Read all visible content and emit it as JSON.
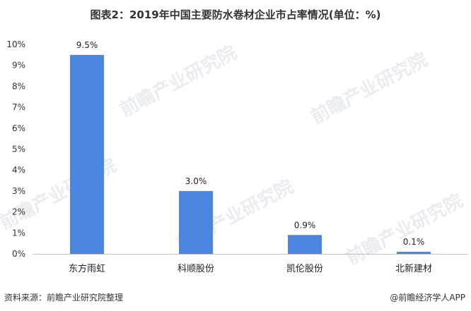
{
  "chart_data": {
    "type": "bar",
    "title": "图表2：2019年中国主要防水卷材企业市占率情况(单位：%)",
    "categories": [
      "东方雨虹",
      "科顺股份",
      "凯伦股份",
      "北新建材"
    ],
    "values": [
      9.5,
      3.0,
      0.9,
      0.1
    ],
    "data_labels": [
      "9.5%",
      "3.0%",
      "0.9%",
      "0.1%"
    ],
    "y_ticks": [
      "0%",
      "1%",
      "2%",
      "3%",
      "4%",
      "5%",
      "6%",
      "7%",
      "8%",
      "9%",
      "10%"
    ],
    "ylim": [
      0,
      10
    ],
    "xlabel": "",
    "ylabel": "",
    "grid": false,
    "bar_color": "#4a86e0"
  },
  "footer": {
    "source": "资料来源：前瞻产业研究院整理",
    "brand": "@前瞻经济学人APP"
  },
  "watermark": {
    "text": "前瞻产业研究院"
  }
}
